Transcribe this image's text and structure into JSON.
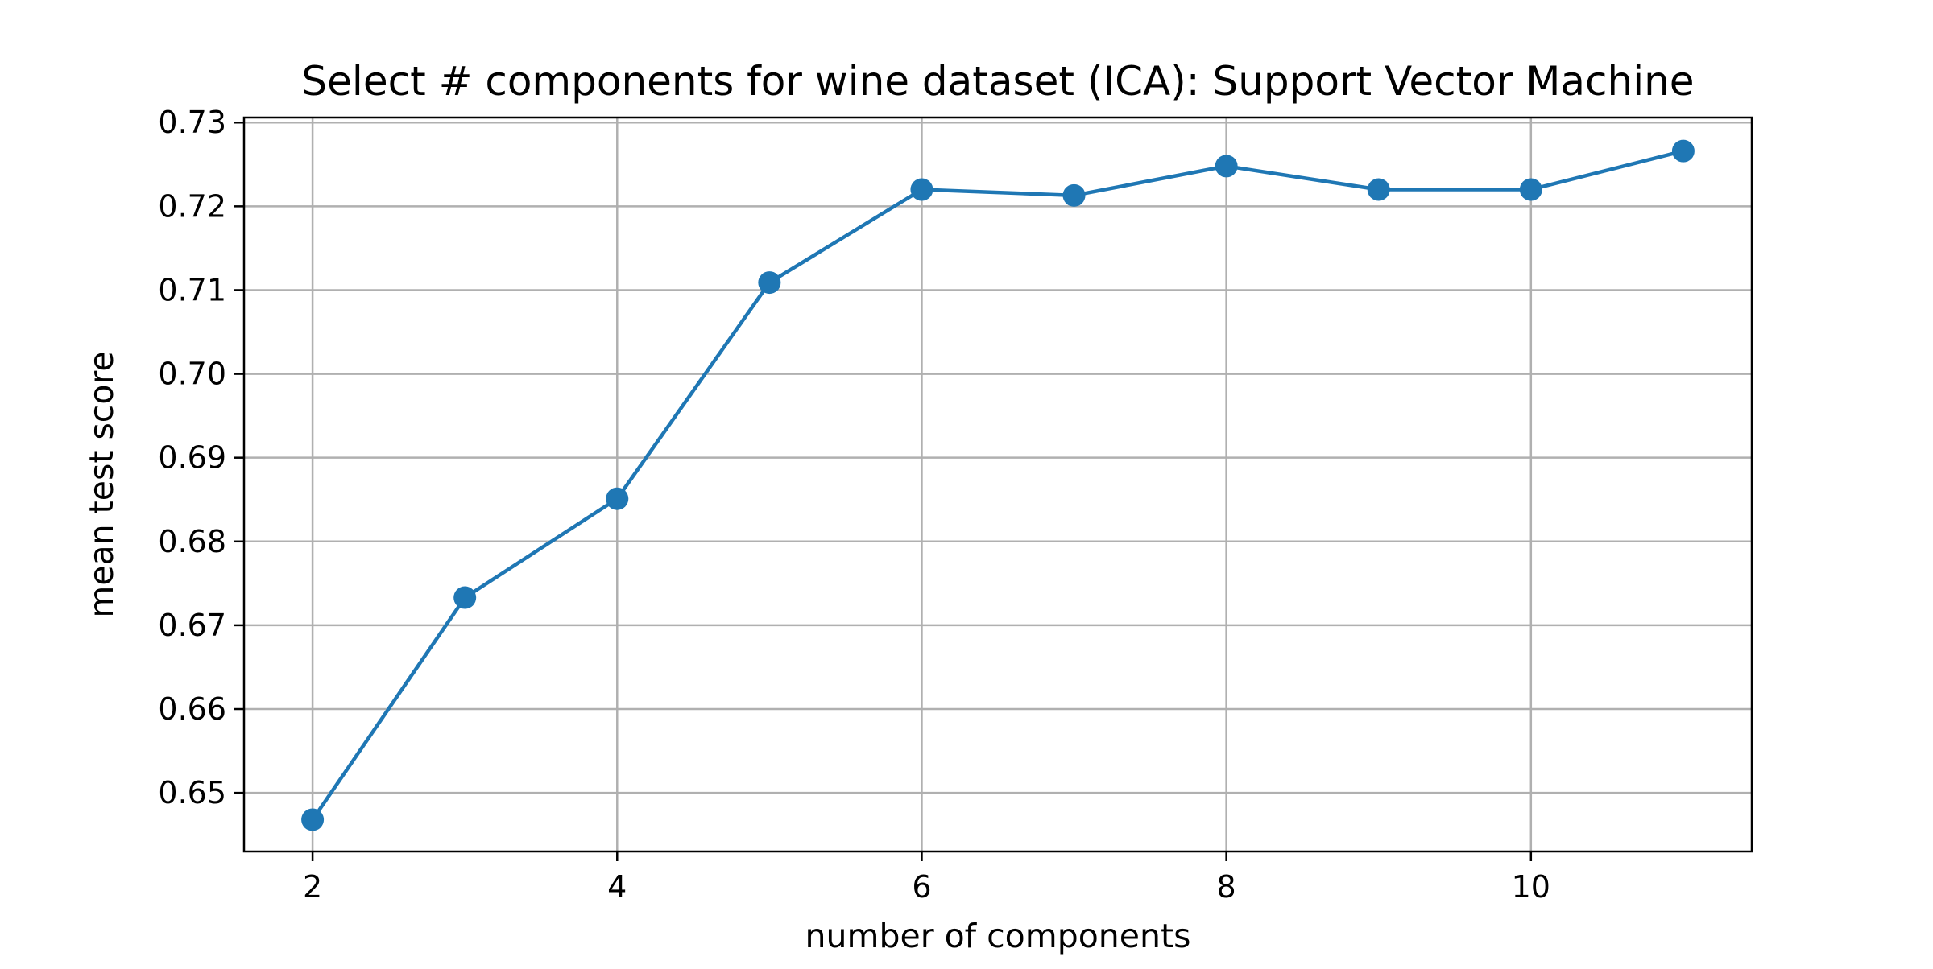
{
  "chart_data": {
    "type": "line",
    "title": "Select # components for wine dataset (ICA): Support Vector Machine",
    "xlabel": "number of components",
    "ylabel": "mean test score",
    "x": [
      2,
      3,
      4,
      5,
      6,
      7,
      8,
      9,
      10,
      11
    ],
    "series": [
      {
        "values": [
          0.6468,
          0.6733,
          0.6851,
          0.7109,
          0.722,
          0.7213,
          0.7248,
          0.722,
          0.722,
          0.7266
        ],
        "color": "#1f77b4"
      }
    ],
    "xlim": [
      1.55,
      11.45
    ],
    "ylim": [
      0.643,
      0.7306
    ],
    "xticks": [
      2,
      4,
      6,
      8,
      10
    ],
    "xtick_labels": [
      "2",
      "4",
      "6",
      "8",
      "10"
    ],
    "yticks": [
      0.65,
      0.66,
      0.67,
      0.68,
      0.69,
      0.7,
      0.71,
      0.72,
      0.73
    ],
    "ytick_labels": [
      "0.65",
      "0.66",
      "0.67",
      "0.68",
      "0.69",
      "0.70",
      "0.71",
      "0.72",
      "0.73"
    ],
    "grid": true,
    "grid_color": "#b0b0b0",
    "marker": "circle"
  }
}
